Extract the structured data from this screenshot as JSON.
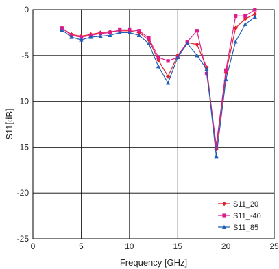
{
  "chart_data": {
    "type": "line",
    "title": "",
    "xlabel": "Frequency [GHz]",
    "ylabel": "S11[dB]",
    "xlim": [
      0,
      25
    ],
    "ylim": [
      -25,
      0
    ],
    "x_ticks": [
      0,
      5,
      10,
      15,
      20,
      25
    ],
    "y_ticks": [
      0,
      -5,
      -10,
      -15,
      -20,
      -25
    ],
    "x_tick_labels": [
      "0",
      "5",
      "10",
      "15",
      "20",
      "25"
    ],
    "y_tick_labels": [
      "0",
      "-5",
      "-10",
      "-15",
      "-20",
      "-25"
    ],
    "grid": true,
    "legend_position": "bottom-right",
    "series": [
      {
        "name": "S11_20",
        "color": "#e0202a",
        "marker": "diamond",
        "x": [
          3,
          4,
          5,
          6,
          7,
          8,
          9,
          10,
          11,
          12,
          13,
          14,
          15,
          16,
          17,
          18,
          19,
          20,
          21,
          22,
          23
        ],
        "y": [
          -2.0,
          -2.7,
          -2.9,
          -2.7,
          -2.5,
          -2.4,
          -2.3,
          -2.3,
          -2.5,
          -3.3,
          -5.5,
          -7.3,
          -5.0,
          -3.6,
          -3.8,
          -6.3,
          -15.2,
          -6.9,
          -2.0,
          -1.0,
          -0.5
        ]
      },
      {
        "name": "S11_-40",
        "color": "#e01a8c",
        "marker": "square",
        "x": [
          3,
          4,
          5,
          6,
          7,
          8,
          9,
          10,
          11,
          12,
          13,
          14,
          15,
          16,
          17,
          18,
          19,
          20,
          21,
          22,
          23
        ],
        "y": [
          -2.0,
          -2.8,
          -3.0,
          -2.8,
          -2.6,
          -2.5,
          -2.2,
          -2.2,
          -2.3,
          -3.1,
          -5.2,
          -5.6,
          -5.2,
          -3.5,
          -2.3,
          -7.0,
          -14.8,
          -6.6,
          -0.7,
          -0.7,
          0.0
        ]
      },
      {
        "name": "S11_85",
        "color": "#1f5fb8",
        "marker": "triangle",
        "x": [
          3,
          4,
          5,
          6,
          7,
          8,
          9,
          10,
          11,
          12,
          13,
          14,
          15,
          16,
          17,
          18,
          19,
          20,
          21,
          22,
          23
        ],
        "y": [
          -2.2,
          -3.0,
          -3.3,
          -3.0,
          -2.9,
          -2.8,
          -2.5,
          -2.5,
          -2.8,
          -3.7,
          -6.2,
          -8.0,
          -5.2,
          -3.7,
          -5.0,
          -6.5,
          -16.0,
          -7.6,
          -3.5,
          -1.6,
          -0.8
        ]
      }
    ]
  }
}
